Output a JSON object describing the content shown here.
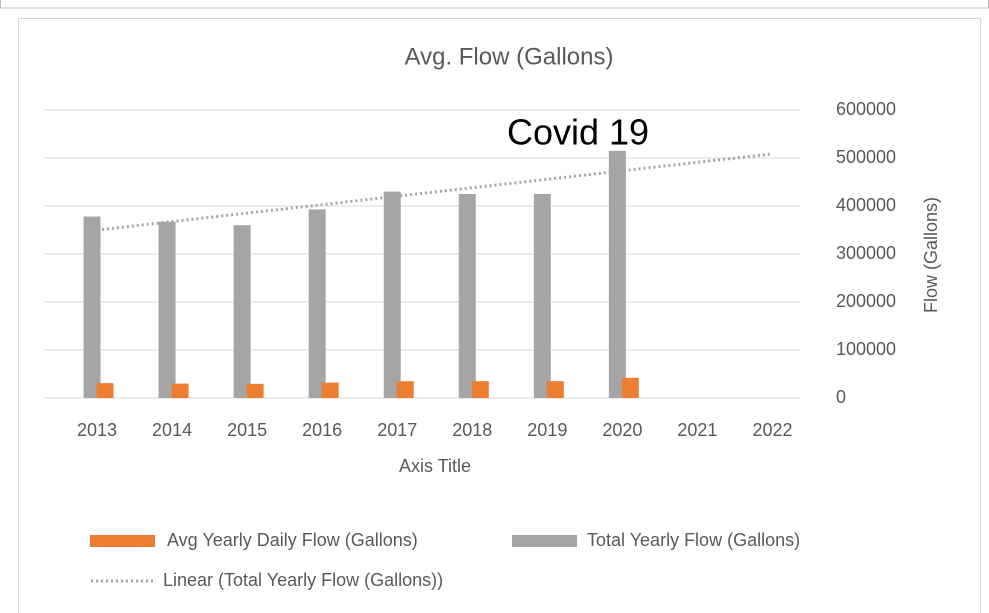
{
  "chart_data": {
    "type": "bar",
    "title": "Avg. Flow (Gallons)",
    "x_label": "Axis Title",
    "y_label": "Flow (Gallons)",
    "annotation": "Covid 19",
    "categories": [
      "2013",
      "2014",
      "2015",
      "2016",
      "2017",
      "2018",
      "2019",
      "2020",
      "2021",
      "2022"
    ],
    "series": [
      {
        "name": "Avg Yearly Daily Flow (Gallons)",
        "color": "#ed7d31",
        "values": [
          31000,
          30000,
          29500,
          32000,
          35000,
          35000,
          35000,
          42000,
          null,
          null
        ]
      },
      {
        "name": "Total Yearly Flow (Gallons)",
        "color": "#a5a5a5",
        "values": [
          378000,
          367000,
          360000,
          393000,
          430000,
          425000,
          425000,
          515000,
          null,
          null
        ]
      }
    ],
    "trendline": {
      "name": "Linear (Total Yearly Flow (Gallons))",
      "color": "#a5a5a5",
      "series": 1
    },
    "ylim": [
      0,
      600000
    ],
    "yticks": [
      0,
      100000,
      200000,
      300000,
      400000,
      500000,
      600000
    ],
    "grid": true,
    "legend": "bottom"
  }
}
